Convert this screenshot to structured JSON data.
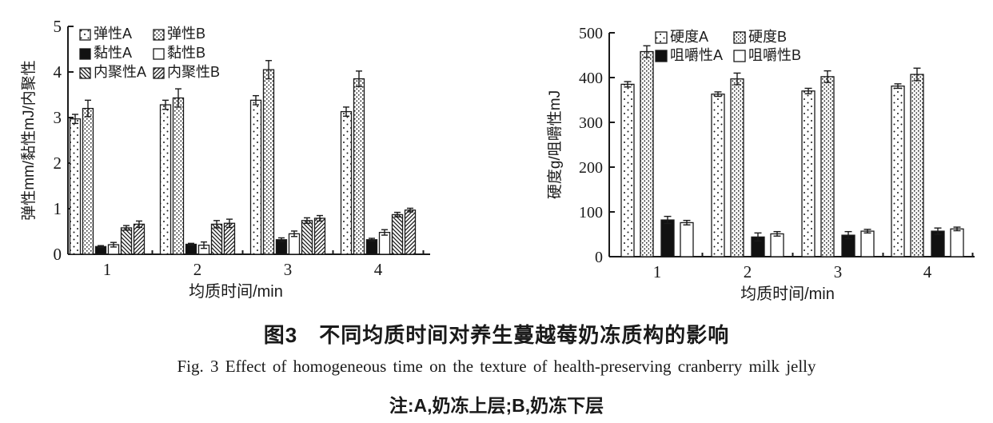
{
  "page": {
    "background": "#ffffff",
    "ink": "#1a1a1a"
  },
  "captions": {
    "cn_title": "图3　不同均质时间对养生蔓越莓奶冻质构的影响",
    "en_title": "Fig. 3   Effect of homogeneous time on the texture of health-preserving cranberry milk jelly",
    "note": "注:A,奶冻上层;B,奶冻下层"
  },
  "chart_data": [
    {
      "type": "bar",
      "title": "",
      "xlabel": "均质时间/min",
      "ylabel": "弹性mm/黏性mJ/内聚性",
      "categories": [
        "1",
        "2",
        "3",
        "4"
      ],
      "ylim": [
        0,
        5
      ],
      "yticks": [
        0,
        1,
        2,
        3,
        4,
        5
      ],
      "grid": false,
      "legend_position": "top-left-inside",
      "legend_columns": 2,
      "series": [
        {
          "name": "弹性A",
          "pattern": "dots-sparse",
          "values": [
            2.97,
            3.28,
            3.38,
            3.13
          ],
          "errors": [
            0.1,
            0.1,
            0.1,
            0.1
          ]
        },
        {
          "name": "弹性B",
          "pattern": "dots-dense",
          "values": [
            3.2,
            3.43,
            4.05,
            3.85
          ],
          "errors": [
            0.18,
            0.2,
            0.2,
            0.17
          ]
        },
        {
          "name": "黏性A",
          "pattern": "solid-black",
          "values": [
            0.17,
            0.22,
            0.32,
            0.32
          ],
          "errors": [
            0.02,
            0.02,
            0.04,
            0.03
          ]
        },
        {
          "name": "黏性B",
          "pattern": "white",
          "values": [
            0.21,
            0.2,
            0.45,
            0.48
          ],
          "errors": [
            0.05,
            0.07,
            0.06,
            0.06
          ]
        },
        {
          "name": "内聚性A",
          "pattern": "hatch-back",
          "values": [
            0.58,
            0.66,
            0.74,
            0.87
          ],
          "errors": [
            0.05,
            0.08,
            0.06,
            0.05
          ]
        },
        {
          "name": "内聚性B",
          "pattern": "hatch-fwd",
          "values": [
            0.66,
            0.68,
            0.79,
            0.97
          ],
          "errors": [
            0.07,
            0.09,
            0.06,
            0.04
          ]
        }
      ]
    },
    {
      "type": "bar",
      "title": "",
      "xlabel": "均质时间/min",
      "ylabel": "硬度g/咀嚼性mJ",
      "categories": [
        "1",
        "2",
        "3",
        "4"
      ],
      "ylim": [
        0,
        500
      ],
      "yticks": [
        0,
        100,
        200,
        300,
        400,
        500
      ],
      "grid": false,
      "legend_position": "top-left-inside",
      "legend_columns": 2,
      "series": [
        {
          "name": "硬度A",
          "pattern": "dots-sparse",
          "values": [
            385,
            363,
            370,
            381
          ],
          "errors": [
            6,
            5,
            6,
            5
          ]
        },
        {
          "name": "硬度B",
          "pattern": "dots-dense",
          "values": [
            458,
            397,
            402,
            407
          ],
          "errors": [
            13,
            13,
            13,
            14
          ]
        },
        {
          "name": "咀嚼性A",
          "pattern": "solid-black",
          "values": [
            82,
            44,
            48,
            57
          ],
          "errors": [
            8,
            9,
            8,
            7
          ]
        },
        {
          "name": "咀嚼性B",
          "pattern": "white",
          "values": [
            76,
            51,
            57,
            62
          ],
          "errors": [
            5,
            5,
            4,
            4
          ]
        }
      ]
    }
  ]
}
